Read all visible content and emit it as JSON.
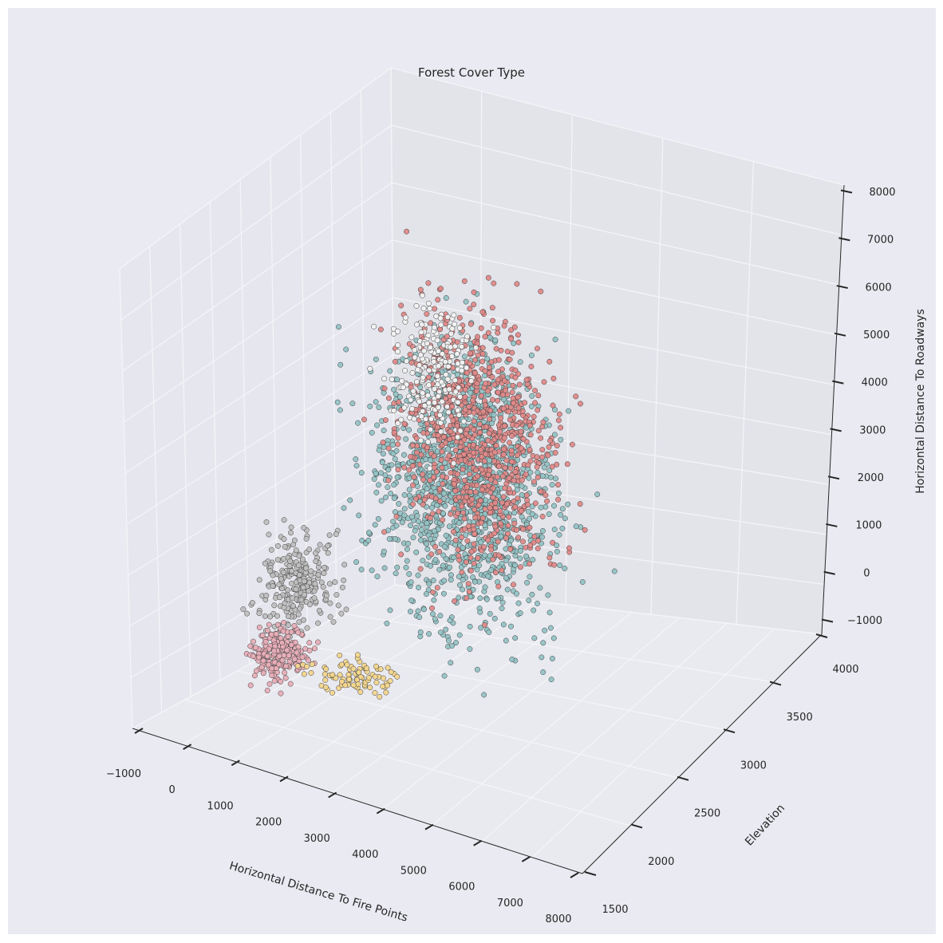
{
  "chart_data": {
    "type": "scatter",
    "projection": "3d",
    "title": "Forest Cover Type",
    "xlabel": "Horizontal Distance To Fire Points",
    "ylabel": "Elevation",
    "zlabel": "Horizontal Distance To Roadways",
    "xlim": [
      -1000,
      8000
    ],
    "ylim": [
      1500,
      4000
    ],
    "zlim": [
      -1000,
      8000
    ],
    "xticks": [
      "−1000",
      "0",
      "1000",
      "2000",
      "3000",
      "4000",
      "5000",
      "6000",
      "7000",
      "8000"
    ],
    "yticks": [
      "1500",
      "2000",
      "2500",
      "3000",
      "3500",
      "4000"
    ],
    "zticks": [
      "−1000",
      "0",
      "1000",
      "2000",
      "3000",
      "4000",
      "5000",
      "6000",
      "7000",
      "8000"
    ],
    "grid": true,
    "legend": "none",
    "series_colors": {
      "cover_type_1": "#df8a89",
      "cover_type_2": "#93c3c5",
      "cover_type_3": "#f3d68c",
      "cover_type_4": "#e8aeb7",
      "cover_type_5": "#f2f2f2",
      "cover_type_6": "#c9b7c5",
      "cover_type_7": "#bfbfbf"
    },
    "point_edge_color": "#3c3c3c"
  },
  "colors": {
    "figure_bg": "#eaeaf2",
    "pane_left": "#e6e6ee",
    "pane_right": "#e3e3ea",
    "pane_floor": "#e9e9f0",
    "grid": "#f5f5f8",
    "axis_line": "#262626"
  }
}
